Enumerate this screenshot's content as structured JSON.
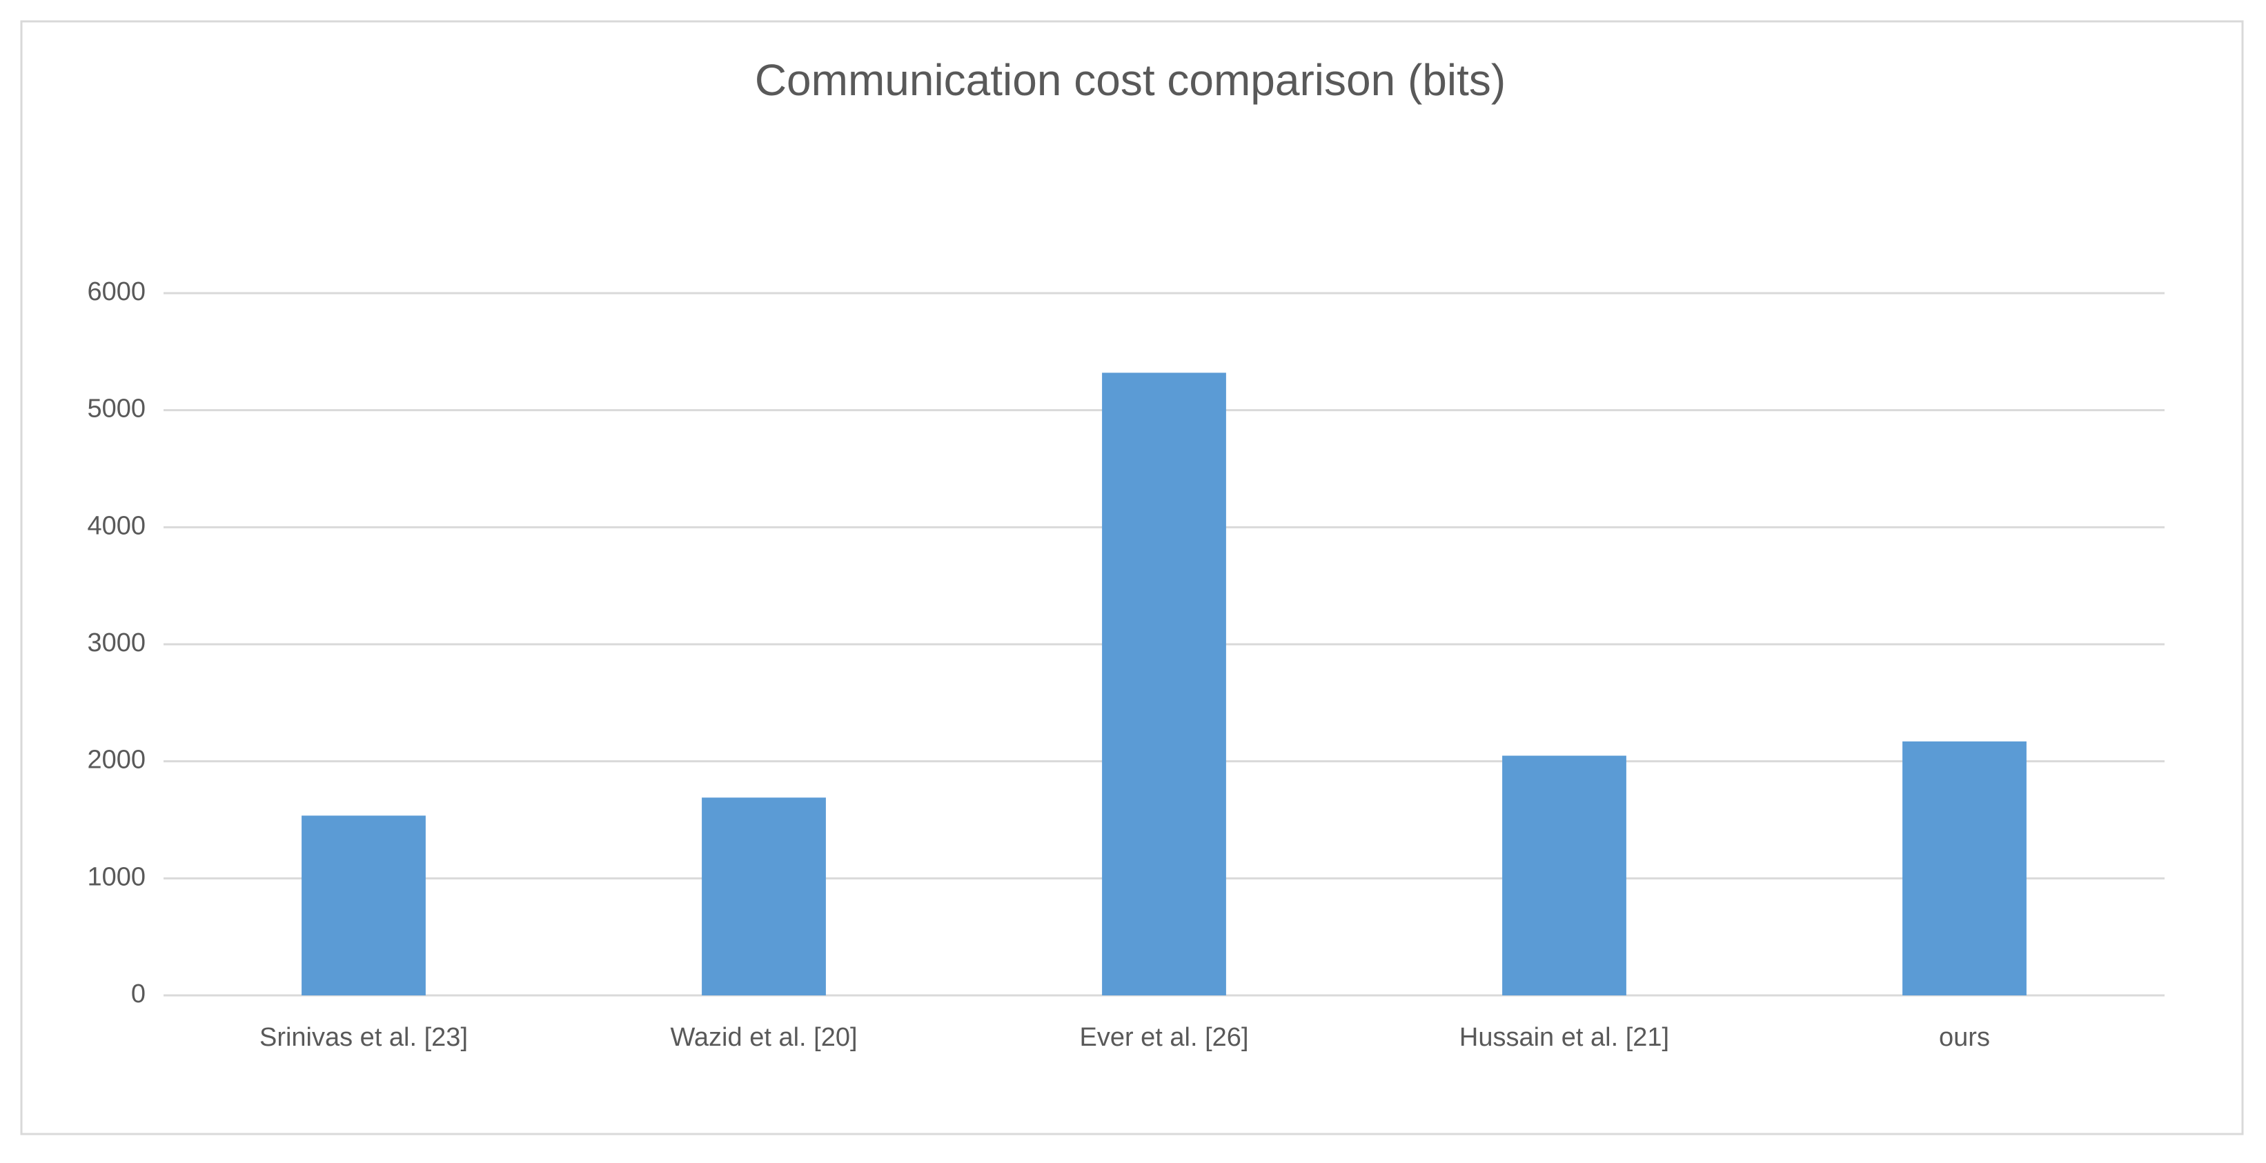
{
  "chart_data": {
    "type": "bar",
    "title": "Communication cost comparison (bits)",
    "categories": [
      "Srinivas et al. [23]",
      "Wazid et al. [20]",
      "Ever et al. [26]",
      "Hussain et al. [21]",
      "ours"
    ],
    "values": [
      1536,
      1690,
      5320,
      2048,
      2170
    ],
    "color": "#5b9bd5",
    "ylim": [
      0,
      6000
    ],
    "yticks": [
      0,
      1000,
      2000,
      3000,
      4000,
      5000,
      6000
    ],
    "grid": true
  }
}
